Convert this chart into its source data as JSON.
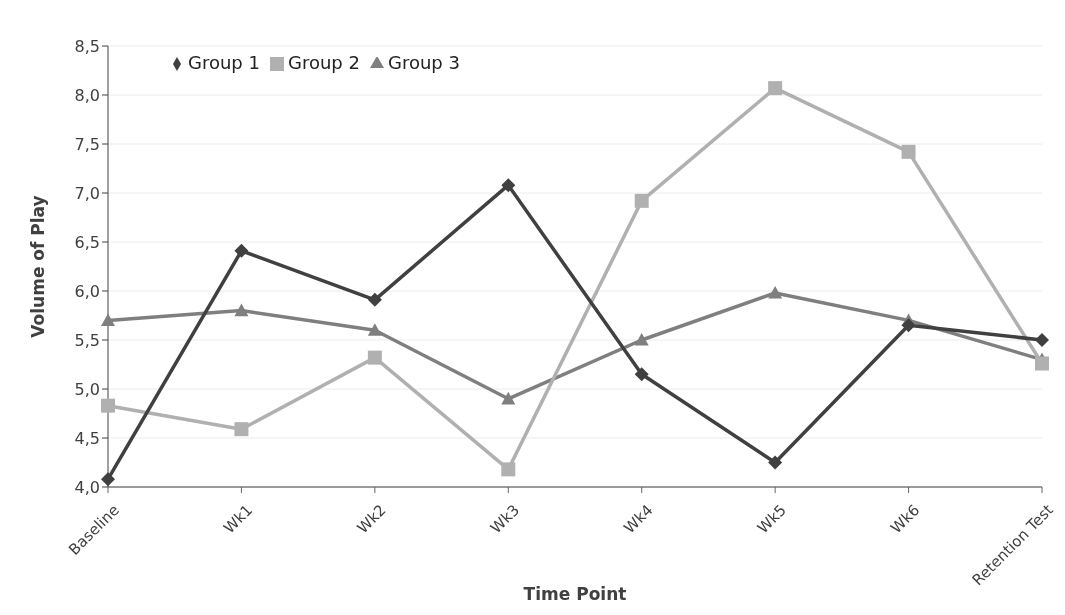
{
  "chart_data": {
    "type": "line",
    "xlabel": "Time Point",
    "ylabel": "Volume of Play",
    "categories": [
      "Baseline",
      "Wk1",
      "Wk2",
      "Wk3",
      "Wk4",
      "Wk5",
      "Wk6",
      "Retention Test"
    ],
    "series": [
      {
        "name": "Group 1",
        "color": "#404040",
        "marker": "diamond",
        "values": [
          4.08,
          6.41,
          5.91,
          7.08,
          5.15,
          4.25,
          5.65,
          5.5
        ]
      },
      {
        "name": "Group 2",
        "color": "#b0b0b0",
        "marker": "square",
        "values": [
          4.83,
          4.59,
          5.32,
          4.18,
          6.92,
          8.07,
          7.42,
          5.26
        ]
      },
      {
        "name": "Group 3",
        "color": "#7f7f7f",
        "marker": "triangle",
        "values": [
          5.7,
          5.8,
          5.6,
          4.9,
          5.5,
          5.98,
          5.7,
          5.3
        ]
      }
    ],
    "ylim": [
      4,
      8.5
    ],
    "yticks": [
      {
        "value": 4,
        "label": "4,0"
      },
      {
        "value": 4.5,
        "label": "4,5"
      },
      {
        "value": 5,
        "label": "5,0"
      },
      {
        "value": 5.5,
        "label": "5,5"
      },
      {
        "value": 6,
        "label": "6,0"
      },
      {
        "value": 6.5,
        "label": "6,5"
      },
      {
        "value": 7,
        "label": "7,0"
      },
      {
        "value": 7.5,
        "label": "7,5"
      },
      {
        "value": 8,
        "label": "8,0"
      },
      {
        "value": 8.5,
        "label": "8,5"
      }
    ],
    "grid": "y",
    "legend": "top left"
  }
}
